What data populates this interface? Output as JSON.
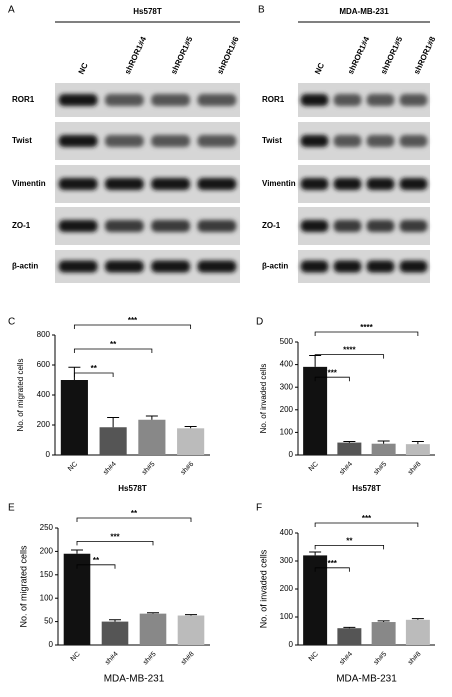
{
  "blots": [
    {
      "label": "A",
      "title": "Hs578T",
      "lanes": [
        "NC",
        "shROR1#4",
        "shROR1#5",
        "shROR1#6"
      ],
      "rows": [
        "ROR1",
        "Twist",
        "Vimentin",
        "ZO-1",
        "β-actin"
      ]
    },
    {
      "label": "B",
      "title": "MDA-MB-231",
      "lanes": [
        "NC",
        "shROR1#4",
        "shROR1#5",
        "shROR1#8"
      ],
      "rows": [
        "ROR1",
        "Twist",
        "Vimentin",
        "ZO-1",
        "β-actin"
      ]
    }
  ],
  "chart_data": [
    {
      "type": "bar",
      "label": "C",
      "y_label": "No. of migrated cells",
      "x_label": "Hs578T",
      "categories": [
        "NC",
        "sh#4",
        "sh#5",
        "sh#6"
      ],
      "values": [
        500,
        185,
        235,
        178
      ],
      "errors": [
        85,
        65,
        25,
        12
      ],
      "colors": [
        "#111111",
        "#555555",
        "#888888",
        "#bbbbbb"
      ],
      "ylim": [
        0,
        800
      ],
      "yticks": [
        0,
        200,
        400,
        600,
        800
      ],
      "significance": [
        "**",
        "**",
        "***"
      ]
    },
    {
      "type": "bar",
      "label": "D",
      "y_label": "No. of invaded cells",
      "x_label": "Hs578T",
      "categories": [
        "NC",
        "sh#4",
        "sh#5",
        "sh#8"
      ],
      "values": [
        390,
        55,
        50,
        48
      ],
      "errors": [
        50,
        5,
        12,
        12
      ],
      "colors": [
        "#111111",
        "#555555",
        "#888888",
        "#bbbbbb"
      ],
      "ylim": [
        0,
        500
      ],
      "yticks": [
        0,
        100,
        200,
        300,
        400,
        500
      ],
      "significance": [
        "***",
        "****",
        "****"
      ]
    },
    {
      "type": "bar",
      "label": "E",
      "y_label": "No. of migrated cells",
      "x_label": "MDA-MB-231",
      "categories": [
        "NC",
        "sh#4",
        "sh#5",
        "sh#8"
      ],
      "values": [
        195,
        50,
        67,
        63
      ],
      "errors": [
        8,
        4,
        2,
        2
      ],
      "colors": [
        "#111111",
        "#555555",
        "#888888",
        "#bbbbbb"
      ],
      "ylim": [
        0,
        250
      ],
      "yticks": [
        0,
        50,
        100,
        150,
        200,
        250
      ],
      "significance": [
        "**",
        "***",
        "**"
      ]
    },
    {
      "type": "bar",
      "label": "F",
      "y_label": "No. of invaded cells",
      "x_label": "MDA-MB-231",
      "categories": [
        "NC",
        "sh#4",
        "sh#5",
        "sh#8"
      ],
      "values": [
        320,
        60,
        82,
        90
      ],
      "errors": [
        12,
        3,
        4,
        4
      ],
      "colors": [
        "#111111",
        "#555555",
        "#888888",
        "#bbbbbb"
      ],
      "ylim": [
        0,
        400
      ],
      "yticks": [
        0,
        100,
        200,
        300,
        400
      ],
      "significance": [
        "***",
        "**",
        "***"
      ]
    }
  ]
}
